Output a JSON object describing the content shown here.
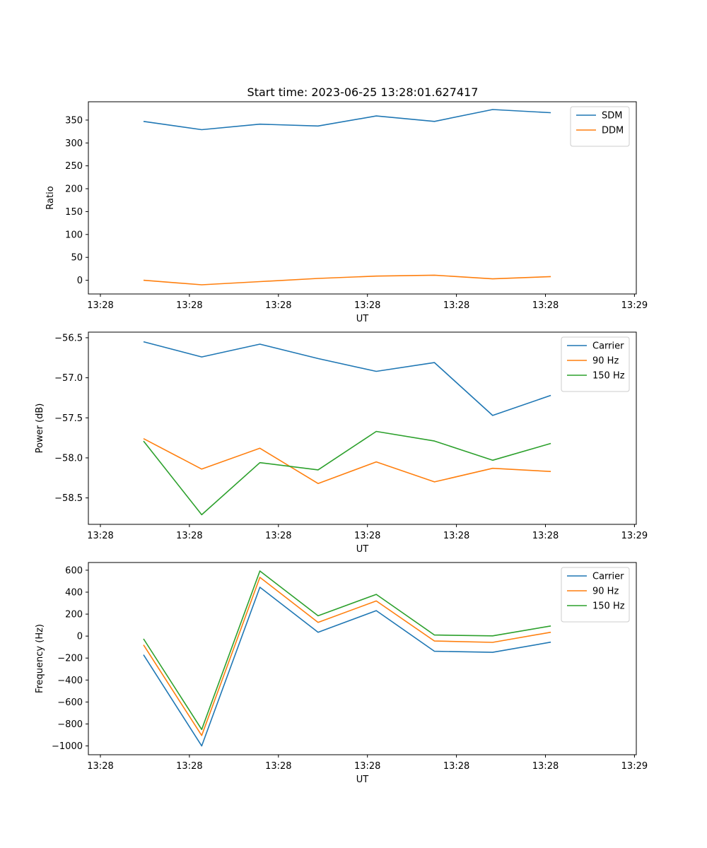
{
  "figure_title": "Start time: 2023-06-25 13:28:01.627417",
  "chart_data": [
    {
      "type": "line",
      "ylabel": "Ratio",
      "xlabel": "UT",
      "x": [
        0,
        1,
        2,
        3,
        4,
        5,
        6,
        7
      ],
      "xtick_labels": [
        "13:28",
        "13:28",
        "13:28",
        "13:28",
        "13:28",
        "13:28",
        "13:29"
      ],
      "yticks": [
        0,
        50,
        100,
        150,
        200,
        250,
        300,
        350
      ],
      "ylim": [
        -30,
        390
      ],
      "legend_position": "top-right",
      "series": [
        {
          "name": "SDM",
          "color": "#1f77b4",
          "values": [
            347,
            329,
            341,
            337,
            359,
            347,
            373,
            366
          ]
        },
        {
          "name": "DDM",
          "color": "#ff7f0e",
          "values": [
            0,
            -10,
            -3,
            4,
            9,
            11,
            3,
            8
          ]
        }
      ]
    },
    {
      "type": "line",
      "ylabel": "Power (dB)",
      "xlabel": "UT",
      "x": [
        0,
        1,
        2,
        3,
        4,
        5,
        6,
        7
      ],
      "xtick_labels": [
        "13:28",
        "13:28",
        "13:28",
        "13:28",
        "13:28",
        "13:28",
        "13:29"
      ],
      "yticks": [
        -58.5,
        -58.0,
        -57.5,
        -57.0,
        -56.5
      ],
      "ytick_labels": [
        "−58.5",
        "−58.0",
        "−57.5",
        "−57.0",
        "−56.5"
      ],
      "ylim": [
        -58.83,
        -56.43
      ],
      "legend_position": "top-right",
      "series": [
        {
          "name": "Carrier",
          "color": "#1f77b4",
          "values": [
            -56.55,
            -56.74,
            -56.58,
            -56.76,
            -56.92,
            -56.81,
            -57.47,
            -57.22
          ]
        },
        {
          "name": "90 Hz",
          "color": "#ff7f0e",
          "values": [
            -57.76,
            -58.14,
            -57.88,
            -58.32,
            -58.05,
            -58.3,
            -58.13,
            -58.17
          ]
        },
        {
          "name": "150 Hz",
          "color": "#2ca02c",
          "values": [
            -57.79,
            -58.71,
            -58.06,
            -58.15,
            -57.67,
            -57.79,
            -58.03,
            -57.82
          ]
        }
      ]
    },
    {
      "type": "line",
      "ylabel": "Frequency (Hz)",
      "xlabel": "UT",
      "x": [
        0,
        1,
        2,
        3,
        4,
        5,
        6,
        7
      ],
      "xtick_labels": [
        "13:28",
        "13:28",
        "13:28",
        "13:28",
        "13:28",
        "13:28",
        "13:29"
      ],
      "yticks": [
        -1000,
        -800,
        -600,
        -400,
        -200,
        0,
        200,
        400,
        600
      ],
      "ytick_labels": [
        "−1000",
        "−800",
        "−600",
        "−400",
        "−200",
        "0",
        "200",
        "400",
        "600"
      ],
      "ylim": [
        -1080,
        670
      ],
      "legend_position": "top-right",
      "series": [
        {
          "name": "Carrier",
          "color": "#1f77b4",
          "values": [
            -170,
            -1000,
            445,
            35,
            232,
            -138,
            -148,
            -55
          ]
        },
        {
          "name": "90 Hz",
          "color": "#ff7f0e",
          "values": [
            -80,
            -905,
            535,
            125,
            320,
            -45,
            -57,
            35
          ]
        },
        {
          "name": "150 Hz",
          "color": "#2ca02c",
          "values": [
            -25,
            -850,
            593,
            185,
            380,
            10,
            2,
            92
          ]
        }
      ]
    }
  ]
}
